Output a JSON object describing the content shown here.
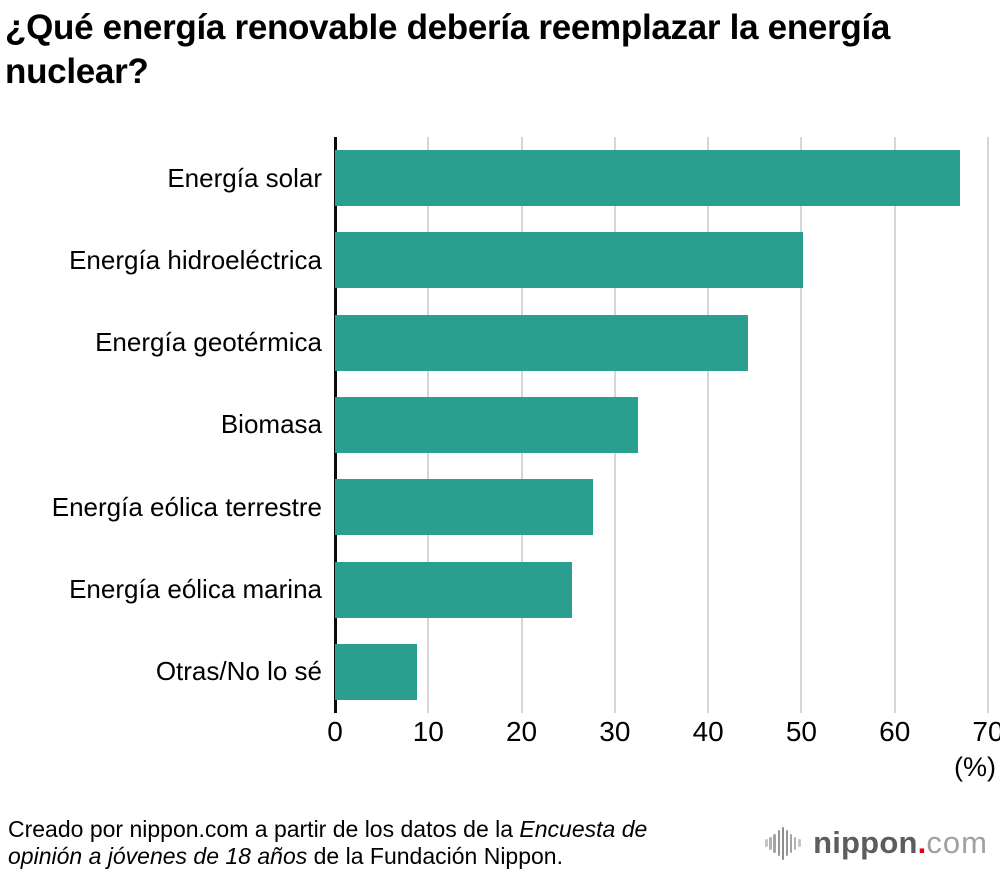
{
  "title": "¿Qué energía renovable debería reemplazar la energía nuclear?",
  "chart_data": {
    "type": "bar",
    "orientation": "horizontal",
    "title": "¿Qué energía renovable debería reemplazar la energía nuclear?",
    "categories": [
      "Energía solar",
      "Energía hidroeléctrica",
      "Energía geotérmica",
      "Biomasa",
      "Energía eólica terrestre",
      "Energía eólica marina",
      "Otras/No lo sé"
    ],
    "values": [
      67.0,
      50.2,
      44.3,
      32.5,
      27.7,
      25.4,
      8.8
    ],
    "xlim": [
      0,
      70
    ],
    "xticks": [
      0,
      10,
      20,
      30,
      40,
      50,
      60,
      70
    ],
    "unit_label": "(%)",
    "bar_color": "#2a9e8f",
    "grid": true,
    "legend": "none"
  },
  "footer": {
    "lines": [
      [
        {
          "text": "Creado por nippon.com a partir de los datos de la ",
          "italic": false
        },
        {
          "text": "Encuesta de",
          "italic": true
        }
      ],
      [
        {
          "text": "opinión a jóvenes de 18 años",
          "italic": true
        },
        {
          "text": " de la Fundación Nippon.",
          "italic": false
        }
      ]
    ]
  },
  "logo": {
    "name": "nippon",
    "dot": ".",
    "tld": "com"
  }
}
